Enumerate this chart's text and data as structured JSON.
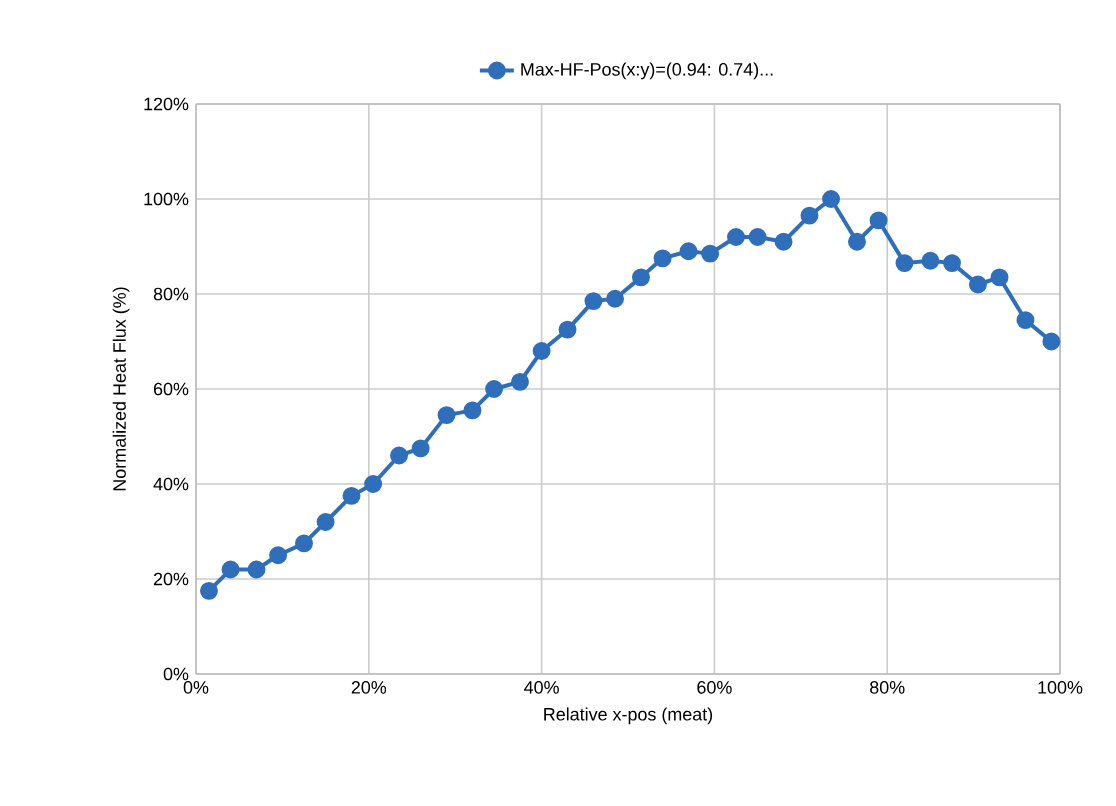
{
  "chart_data": {
    "type": "line",
    "xlabel": "Relative x-pos (meat)",
    "ylabel": "Normalized Heat Flux (%)",
    "series": [
      {
        "name": "Max-HF-Pos(x:y)=(0.94: 0.74)...",
        "color": "#2f6eba",
        "x": [
          1.5,
          4,
          7,
          9.5,
          12.5,
          15,
          18,
          20.5,
          23.5,
          26,
          29,
          32,
          34.5,
          37.5,
          40,
          43,
          46,
          48.5,
          51.5,
          54,
          57,
          59.5,
          62.5,
          65,
          68,
          71,
          73.5,
          76.5,
          79,
          82,
          85,
          87.5,
          90.5,
          93,
          96,
          99
        ],
        "values": [
          17.5,
          22,
          22,
          25,
          27.5,
          32,
          37.5,
          40,
          46,
          47.5,
          54.5,
          55.5,
          60,
          61.5,
          68,
          72.5,
          78.5,
          79,
          83.5,
          87.5,
          89,
          88.5,
          92,
          92,
          91,
          96.5,
          100,
          91,
          95.5,
          86.5,
          87,
          86.5,
          82,
          83.5,
          74.5,
          70
        ]
      }
    ],
    "xlim": [
      0,
      100
    ],
    "ylim": [
      0,
      120
    ],
    "xticks": [
      {
        "value": 0,
        "label": "0%"
      },
      {
        "value": 20,
        "label": "20%"
      },
      {
        "value": 40,
        "label": "40%"
      },
      {
        "value": 60,
        "label": "60%"
      },
      {
        "value": 80,
        "label": "80%"
      },
      {
        "value": 100,
        "label": "100%"
      }
    ],
    "yticks": [
      {
        "value": 0,
        "label": "0%"
      },
      {
        "value": 20,
        "label": "20%"
      },
      {
        "value": 40,
        "label": "40%"
      },
      {
        "value": 60,
        "label": "60%"
      },
      {
        "value": 80,
        "label": "80%"
      },
      {
        "value": 100,
        "label": "100%"
      },
      {
        "value": 120,
        "label": "120%"
      }
    ],
    "grid": true,
    "legend": "top",
    "marker": "circle",
    "line_style": "solid"
  }
}
